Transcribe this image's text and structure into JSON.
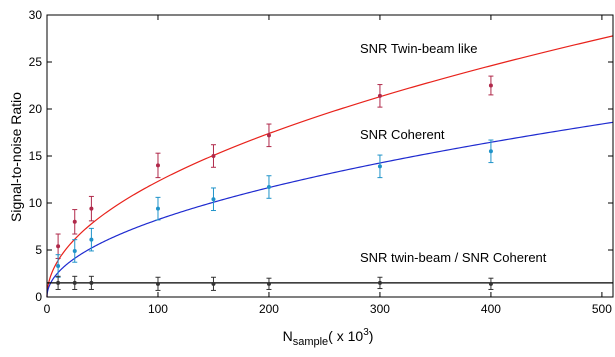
{
  "chart_data": {
    "type": "scatter",
    "xlabel": {
      "main": "N",
      "sub": "sample",
      "suffix": "( x 10",
      "sup": "3",
      "close": ")"
    },
    "ylabel": "Signal-to-noise Ratio",
    "xlim": [
      0,
      510
    ],
    "ylim": [
      0,
      30
    ],
    "xticks": [
      "0",
      "100",
      "200",
      "300",
      "400",
      "500"
    ],
    "yticks": [
      "0",
      "5",
      "10",
      "15",
      "20",
      "25",
      "30"
    ],
    "grid": false,
    "annotations": [
      "SNR Twin-beam like",
      "SNR Coherent",
      "SNR twin-beam / SNR Coherent"
    ],
    "series": [
      {
        "name": "SNR Twin-beam like",
        "color": "#b0294a",
        "x": [
          10,
          25,
          40,
          100,
          150,
          200,
          300,
          400
        ],
        "y": [
          5.4,
          8.0,
          9.4,
          14.0,
          15.0,
          17.2,
          21.4,
          22.5
        ],
        "err": [
          1.3,
          1.3,
          1.3,
          1.3,
          1.2,
          1.2,
          1.2,
          1.0
        ]
      },
      {
        "name": "SNR Coherent",
        "color": "#1f93c9",
        "x": [
          10,
          25,
          40,
          100,
          150,
          200,
          300,
          400
        ],
        "y": [
          3.3,
          4.9,
          6.1,
          9.4,
          10.4,
          11.7,
          13.9,
          15.5
        ],
        "err": [
          1.2,
          1.2,
          1.2,
          1.2,
          1.2,
          1.2,
          1.2,
          1.2
        ]
      },
      {
        "name": "SNR twin-beam / SNR Coherent",
        "color": "#333333",
        "x": [
          10,
          25,
          40,
          100,
          150,
          200,
          300,
          400
        ],
        "y": [
          1.5,
          1.5,
          1.5,
          1.4,
          1.4,
          1.4,
          1.5,
          1.4
        ],
        "err": [
          0.7,
          0.7,
          0.7,
          0.7,
          0.7,
          0.6,
          0.6,
          0.6
        ]
      }
    ],
    "fits": [
      {
        "name": "SNR Twin-beam like",
        "color": "#e8231c",
        "form": "sqrt",
        "coef": 1.23
      },
      {
        "name": "SNR Coherent",
        "color": "#1f2bd0",
        "form": "sqrt",
        "coef": 0.823
      },
      {
        "name": "SNR twin-beam / SNR Coherent",
        "color": "#000000",
        "form": "constant",
        "value": 1.5
      }
    ]
  }
}
